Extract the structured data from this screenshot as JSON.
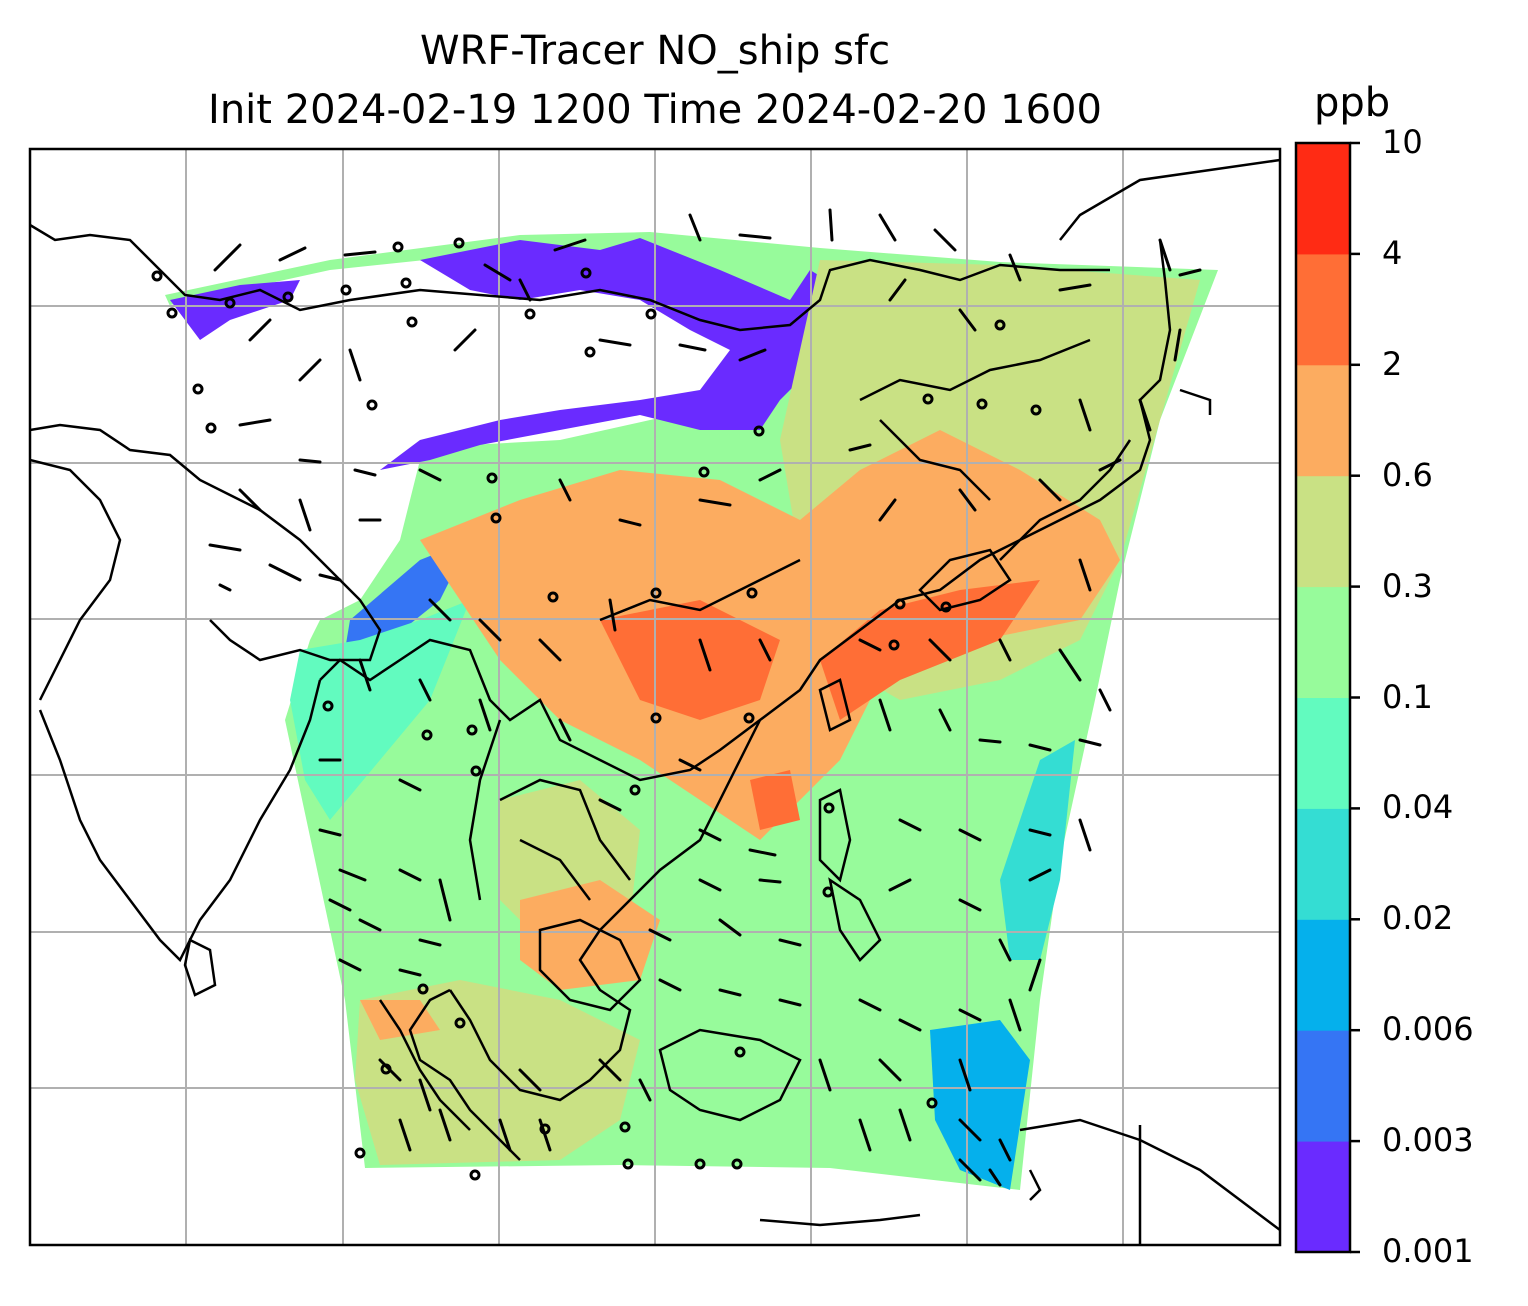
{
  "title": {
    "line1": "WRF-Tracer NO_ship sfc",
    "line2": "Init 2024-02-19 1200 Time 2024-02-20 1600"
  },
  "colorbar": {
    "unit": "ppb",
    "levels": [
      "0.001",
      "0.003",
      "0.006",
      "0.02",
      "0.04",
      "0.1",
      "0.3",
      "0.6",
      "2",
      "4",
      "10"
    ],
    "colors": [
      "#6a2bff",
      "#3575f4",
      "#05b0ec",
      "#34ddd3",
      "#62fbbf",
      "#97fb9b",
      "#c9e184",
      "#fcac60",
      "#ff6e36",
      "#ff2b14"
    ]
  },
  "map": {
    "projection": "Lambert conformal",
    "gridlines": true,
    "features": [
      "coastlines",
      "country borders",
      "wind barbs",
      "calm circles"
    ],
    "background_color": "#ffffff",
    "gridline_color": "#b0b0b0"
  }
}
